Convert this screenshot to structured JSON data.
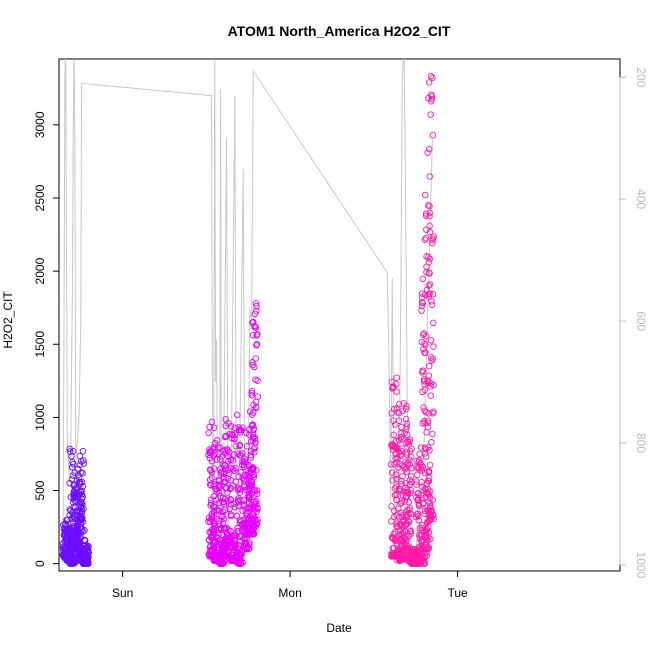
{
  "chart_data": {
    "type": "scatter",
    "title": "ATOM1 North_America H2O2_CIT",
    "xlabel": "Date",
    "ylabel": "H2O2_CIT",
    "x_ticks": [
      "Sun",
      "Mon",
      "Tue"
    ],
    "y_ticks": [
      0,
      500,
      1000,
      1500,
      2000,
      2500,
      3000
    ],
    "y2_ticks": [
      200,
      400,
      600,
      800,
      1000
    ],
    "ylim": [
      -50,
      3450
    ],
    "y2lim": [
      1010,
      170
    ],
    "xlim_days": [
      -0.38,
      2.97
    ],
    "grid": false,
    "colors": {
      "flight1": "#6a0dff",
      "flight2": "#e600ff",
      "flight3": "#ff1aa8",
      "secondary_line": "#c8c8c8",
      "axis": "#000000",
      "right_axis": "#bbbbbb"
    },
    "flights": [
      {
        "x_range_days": [
          -0.34,
          -0.22
        ],
        "clusters": [
          [
            -0.34,
            40,
            300
          ],
          [
            -0.32,
            20,
            250
          ],
          [
            -0.3,
            0,
            800
          ],
          [
            -0.28,
            100,
            650
          ],
          [
            -0.26,
            20,
            600
          ],
          [
            -0.24,
            50,
            880
          ],
          [
            -0.22,
            0,
            130
          ]
        ]
      },
      {
        "x_range_days": [
          0.53,
          0.82
        ],
        "clusters": [
          [
            0.53,
            50,
            1050
          ],
          [
            0.56,
            20,
            900
          ],
          [
            0.59,
            0,
            800
          ],
          [
            0.62,
            50,
            1180
          ],
          [
            0.66,
            20,
            950
          ],
          [
            0.7,
            0,
            1050
          ],
          [
            0.74,
            100,
            900
          ],
          [
            0.77,
            200,
            1170
          ],
          [
            0.79,
            250,
            1780
          ]
        ]
      },
      {
        "x_range_days": [
          1.62,
          1.85
        ],
        "clusters": [
          [
            1.62,
            50,
            1300
          ],
          [
            1.65,
            20,
            1100
          ],
          [
            1.68,
            30,
            1150
          ],
          [
            1.71,
            10,
            900
          ],
          [
            1.74,
            0,
            100
          ],
          [
            1.77,
            0,
            800
          ],
          [
            1.8,
            0,
            2000
          ],
          [
            1.82,
            100,
            2850
          ],
          [
            1.84,
            300,
            3350
          ]
        ]
      }
    ],
    "pressure_line": [
      [
        -0.36,
        1000
      ],
      [
        -0.355,
        900
      ],
      [
        -0.35,
        600
      ],
      [
        -0.345,
        200
      ],
      [
        -0.34,
        150
      ],
      [
        -0.335,
        500
      ],
      [
        -0.33,
        800
      ],
      [
        -0.32,
        850
      ],
      [
        -0.31,
        820
      ],
      [
        -0.3,
        550
      ],
      [
        -0.295,
        300
      ],
      [
        -0.29,
        150
      ],
      [
        -0.285,
        300
      ],
      [
        -0.28,
        820
      ],
      [
        -0.27,
        800
      ],
      [
        -0.26,
        750
      ],
      [
        -0.25,
        600
      ],
      [
        -0.245,
        210
      ],
      [
        0.53,
        230
      ],
      [
        0.535,
        600
      ],
      [
        0.54,
        950
      ],
      [
        0.545,
        800
      ],
      [
        0.55,
        150
      ],
      [
        0.555,
        700
      ],
      [
        0.56,
        630
      ],
      [
        0.57,
        950
      ],
      [
        0.58,
        800
      ],
      [
        0.585,
        220
      ],
      [
        0.59,
        950
      ],
      [
        0.6,
        940
      ],
      [
        0.62,
        300
      ],
      [
        0.63,
        950
      ],
      [
        0.65,
        800
      ],
      [
        0.67,
        230
      ],
      [
        0.68,
        1000
      ],
      [
        0.7,
        800
      ],
      [
        0.72,
        350
      ],
      [
        0.73,
        960
      ],
      [
        0.75,
        850
      ],
      [
        0.76,
        580
      ],
      [
        0.77,
        600
      ],
      [
        0.78,
        190
      ],
      [
        1.58,
        520
      ],
      [
        1.59,
        650
      ],
      [
        1.6,
        900
      ],
      [
        1.61,
        530
      ],
      [
        1.62,
        850
      ],
      [
        1.63,
        950
      ],
      [
        1.64,
        800
      ],
      [
        1.65,
        900
      ],
      [
        1.66,
        600
      ],
      [
        1.67,
        200
      ],
      [
        1.68,
        150
      ],
      [
        1.69,
        400
      ],
      [
        1.7,
        750
      ],
      [
        1.72,
        960
      ],
      [
        1.74,
        1000
      ],
      [
        1.76,
        950
      ],
      [
        1.78,
        900
      ],
      [
        1.8,
        800
      ],
      [
        1.81,
        700
      ],
      [
        1.82,
        600
      ],
      [
        1.83,
        500
      ],
      [
        1.84,
        400
      ],
      [
        1.85,
        300
      ]
    ]
  }
}
